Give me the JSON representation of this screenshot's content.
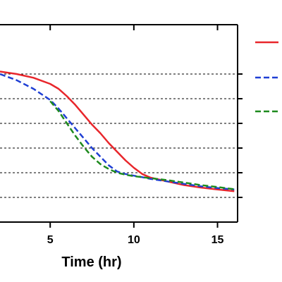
{
  "chart_data": {
    "type": "line",
    "title": "",
    "xlabel": "Time (hr)",
    "ylabel": "",
    "xlim": [
      2,
      16.2
    ],
    "ylim": [
      0,
      8
    ],
    "grid": "horizontal-dashed",
    "x_ticks": [
      "5",
      "10",
      "15"
    ],
    "x_tick_values": [
      5,
      10,
      15
    ],
    "y_grid_values": [
      1,
      2,
      3,
      4,
      5,
      6
    ],
    "legend": {
      "placement": "right",
      "entries": [
        "",
        "",
        ""
      ]
    },
    "series": [
      {
        "color": "#e8262b",
        "style": "solid",
        "x": [
          2,
          3,
          4,
          5,
          5.5,
          6,
          6.5,
          7,
          7.5,
          8,
          8.5,
          9,
          9.5,
          10,
          10.5,
          11,
          12,
          13,
          14,
          15,
          16
        ],
        "y": [
          6.1,
          6.0,
          5.85,
          5.6,
          5.4,
          5.1,
          4.75,
          4.35,
          3.95,
          3.6,
          3.2,
          2.85,
          2.5,
          2.2,
          1.95,
          1.8,
          1.65,
          1.5,
          1.4,
          1.32,
          1.25
        ]
      },
      {
        "color": "#1f3fd4",
        "style": "dashed",
        "x": [
          2,
          3,
          4,
          5,
          5.5,
          6,
          6.5,
          7,
          7.5,
          8,
          8.5,
          9,
          9.5,
          10,
          10.5,
          11,
          12,
          13,
          14,
          15,
          16
        ],
        "y": [
          6.0,
          5.75,
          5.4,
          4.95,
          4.6,
          4.2,
          3.8,
          3.4,
          3.0,
          2.65,
          2.3,
          2.05,
          1.95,
          1.88,
          1.82,
          1.75,
          1.65,
          1.55,
          1.45,
          1.38,
          1.32
        ]
      },
      {
        "color": "#1e8a1e",
        "style": "dashed",
        "x": [
          5,
          5.5,
          6,
          6.5,
          7,
          7.5,
          8,
          8.5,
          9,
          9.5,
          10,
          10.5,
          11,
          12,
          13,
          14,
          15,
          16
        ],
        "y": [
          4.9,
          4.5,
          4.0,
          3.5,
          3.05,
          2.65,
          2.35,
          2.15,
          2.0,
          1.92,
          1.86,
          1.82,
          1.78,
          1.7,
          1.6,
          1.5,
          1.42,
          1.33
        ]
      }
    ]
  }
}
